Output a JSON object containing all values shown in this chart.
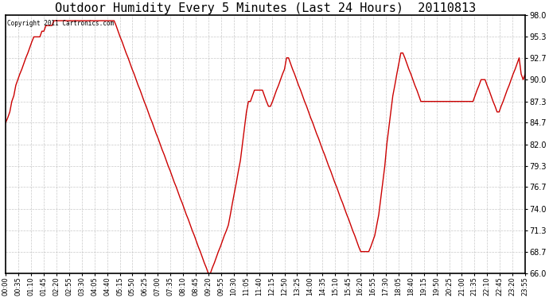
{
  "title": "Outdoor Humidity Every 5 Minutes (Last 24 Hours)  20110813",
  "copyright": "Copyright 2011 Cartronics.com",
  "ylim": [
    66.0,
    98.0
  ],
  "yticks": [
    66.0,
    68.7,
    71.3,
    74.0,
    76.7,
    79.3,
    82.0,
    84.7,
    87.3,
    90.0,
    92.7,
    95.3,
    98.0
  ],
  "line_color": "#cc0000",
  "background_color": "#ffffff",
  "plot_bg_color": "#ffffff",
  "title_fontsize": 11,
  "grid_color": "#bbbbbb",
  "humidity_values": [
    84.7,
    85.3,
    86.0,
    87.3,
    88.0,
    89.3,
    90.0,
    90.7,
    91.3,
    92.0,
    92.7,
    93.3,
    94.0,
    94.7,
    95.3,
    95.3,
    95.3,
    95.3,
    96.0,
    96.0,
    96.7,
    96.7,
    96.7,
    96.7,
    97.3,
    97.3,
    97.3,
    97.3,
    97.3,
    97.3,
    97.3,
    97.3,
    97.3,
    97.3,
    97.3,
    97.3,
    97.3,
    97.3,
    97.3,
    97.3,
    97.3,
    97.3,
    97.3,
    97.3,
    97.3,
    97.3,
    97.3,
    97.3,
    97.3,
    97.3,
    97.3,
    97.3,
    97.3,
    97.3,
    97.3,
    96.7,
    96.0,
    95.3,
    94.7,
    94.0,
    93.3,
    92.7,
    92.0,
    91.3,
    90.7,
    90.0,
    89.3,
    88.7,
    88.0,
    87.3,
    86.7,
    86.0,
    85.3,
    84.7,
    84.0,
    83.3,
    82.7,
    82.0,
    81.3,
    80.7,
    80.0,
    79.3,
    78.7,
    78.0,
    77.3,
    76.7,
    76.0,
    75.3,
    74.7,
    74.0,
    73.3,
    72.7,
    72.0,
    71.3,
    70.7,
    70.0,
    69.3,
    68.7,
    68.0,
    67.3,
    66.7,
    66.0,
    66.0,
    66.7,
    67.3,
    68.0,
    68.7,
    69.3,
    70.0,
    70.7,
    71.3,
    72.0,
    73.3,
    74.7,
    76.0,
    77.3,
    78.7,
    80.0,
    82.0,
    84.0,
    86.0,
    87.3,
    87.3,
    88.0,
    88.7,
    88.7,
    88.7,
    88.7,
    88.7,
    88.0,
    87.3,
    86.7,
    86.7,
    87.3,
    88.0,
    88.7,
    89.3,
    90.0,
    90.7,
    91.3,
    92.7,
    92.7,
    92.0,
    91.3,
    90.7,
    90.0,
    89.3,
    88.7,
    88.0,
    87.3,
    86.7,
    86.0,
    85.3,
    84.7,
    84.0,
    83.3,
    82.7,
    82.0,
    81.3,
    80.7,
    80.0,
    79.3,
    78.7,
    78.0,
    77.3,
    76.7,
    76.0,
    75.3,
    74.7,
    74.0,
    73.3,
    72.7,
    72.0,
    71.3,
    70.7,
    70.0,
    69.3,
    68.7,
    68.7,
    68.7,
    68.7,
    68.7,
    69.3,
    70.0,
    70.7,
    72.0,
    73.3,
    75.3,
    77.3,
    79.3,
    82.0,
    84.0,
    86.0,
    88.0,
    89.3,
    90.7,
    92.0,
    93.3,
    93.3,
    92.7,
    92.0,
    91.3,
    90.7,
    90.0,
    89.3,
    88.7,
    88.0,
    87.3,
    87.3,
    87.3,
    87.3,
    87.3,
    87.3,
    87.3,
    87.3,
    87.3,
    87.3,
    87.3,
    87.3,
    87.3,
    87.3,
    87.3,
    87.3,
    87.3,
    87.3,
    87.3,
    87.3,
    87.3,
    87.3,
    87.3,
    87.3,
    87.3,
    87.3,
    87.3,
    88.0,
    88.7,
    89.3,
    90.0,
    90.0,
    90.0,
    89.3,
    88.7,
    88.0,
    87.3,
    86.7,
    86.0,
    86.0,
    86.7,
    87.3,
    88.0,
    88.7,
    89.3,
    90.0,
    90.7,
    91.3,
    92.0,
    92.7,
    90.7,
    90.0,
    90.7
  ],
  "xtick_labels": [
    "00:00",
    "00:35",
    "01:10",
    "01:45",
    "02:20",
    "02:55",
    "03:30",
    "04:05",
    "04:40",
    "05:15",
    "05:50",
    "06:25",
    "07:00",
    "07:35",
    "08:10",
    "08:45",
    "09:20",
    "09:55",
    "10:30",
    "11:05",
    "11:40",
    "12:15",
    "12:50",
    "13:25",
    "14:00",
    "14:35",
    "15:10",
    "15:45",
    "16:20",
    "16:55",
    "17:30",
    "18:05",
    "18:40",
    "19:15",
    "19:50",
    "20:25",
    "21:00",
    "21:35",
    "22:10",
    "22:45",
    "23:20",
    "23:55"
  ],
  "figwidth": 6.9,
  "figheight": 3.75,
  "dpi": 100
}
